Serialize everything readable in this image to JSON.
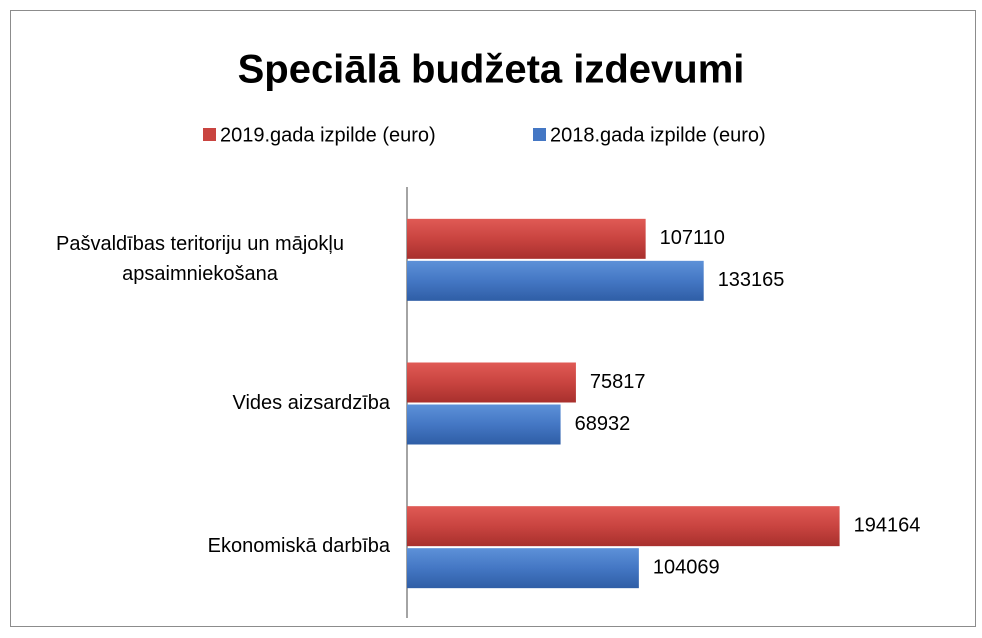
{
  "chart_data": {
    "type": "hbar",
    "title": "Speciālā budžeta izdevumi",
    "categories": [
      "Pašvaldības teritoriju un mājokļu apsaimniekošana",
      "Vides aizsardzība",
      "Ekonomiskā darbība"
    ],
    "series": [
      {
        "name": "2019.gada izpilde (euro)",
        "color": "#c94440",
        "values": [
          107110,
          75817,
          194164
        ]
      },
      {
        "name": "2018.gada izpilde (euro)",
        "color": "#4477c4",
        "values": [
          133165,
          68932,
          104069
        ]
      }
    ],
    "xlim": [
      0,
      250000
    ],
    "legend": "top"
  }
}
